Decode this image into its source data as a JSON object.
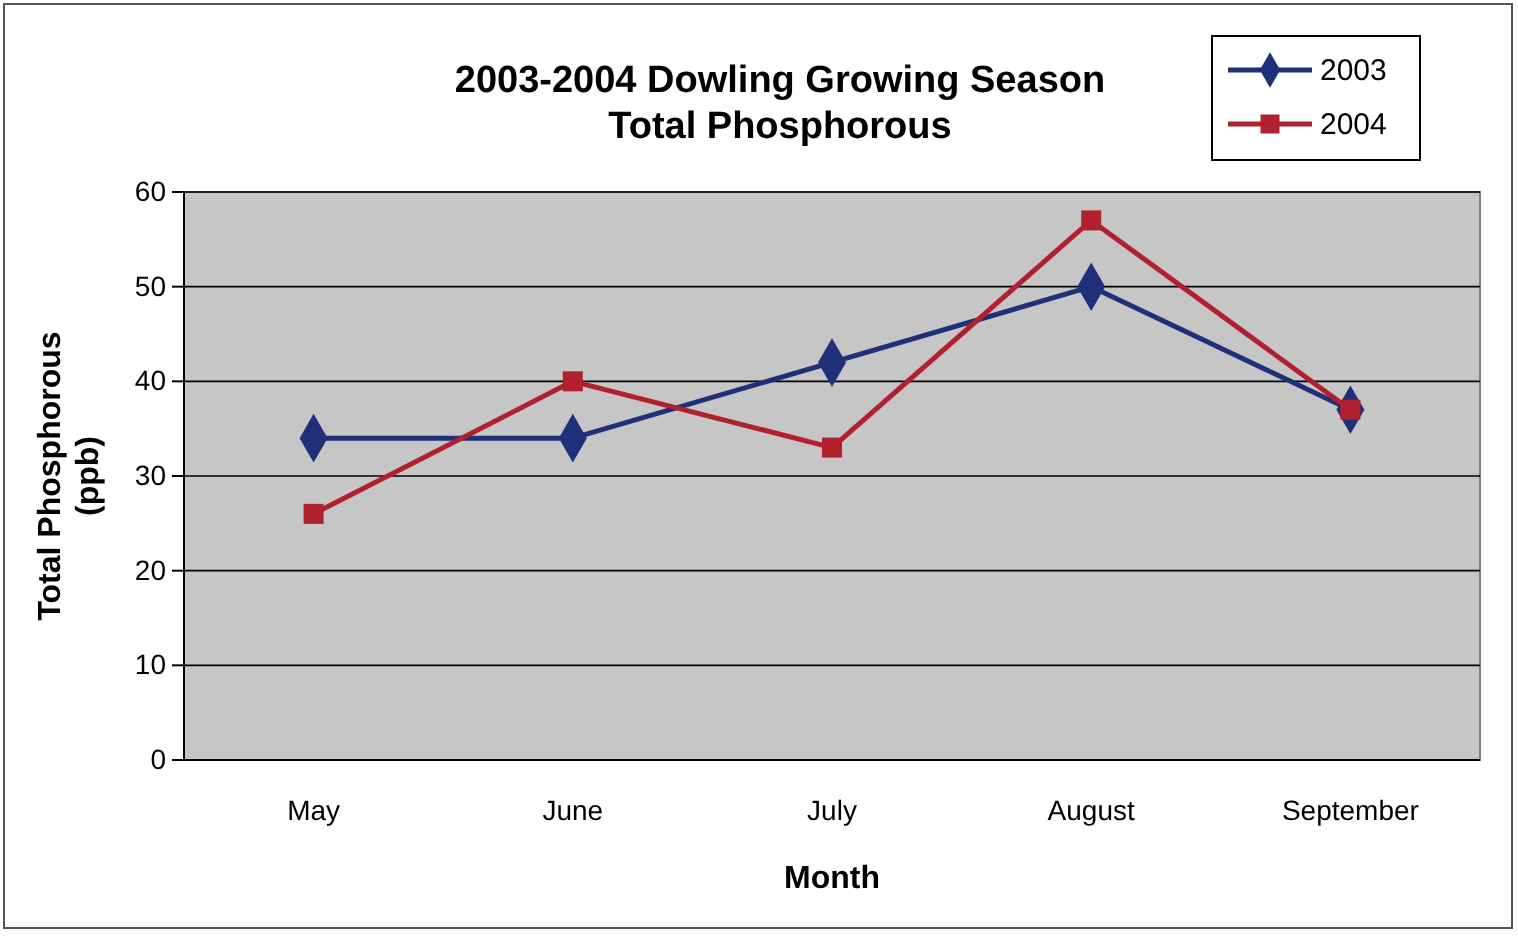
{
  "chart_data": {
    "type": "line",
    "title": "2003-2004 Dowling Growing Season\nTotal Phosphorous",
    "xlabel": "Month",
    "ylabel": "Total Phosphorous\n(ppb)",
    "categories": [
      "May",
      "June",
      "July",
      "August",
      "September"
    ],
    "series": [
      {
        "name": "2003",
        "color": "#1f2f7a",
        "marker": "diamond",
        "values": [
          34,
          34,
          42,
          50,
          37
        ]
      },
      {
        "name": "2004",
        "color": "#b0202e",
        "marker": "square",
        "values": [
          26,
          40,
          33,
          57,
          37
        ]
      }
    ],
    "ylim": [
      0,
      60
    ],
    "yticks": [
      0,
      10,
      20,
      30,
      40,
      50,
      60
    ],
    "grid": "y",
    "legend": "top right",
    "line_style": "solid"
  }
}
